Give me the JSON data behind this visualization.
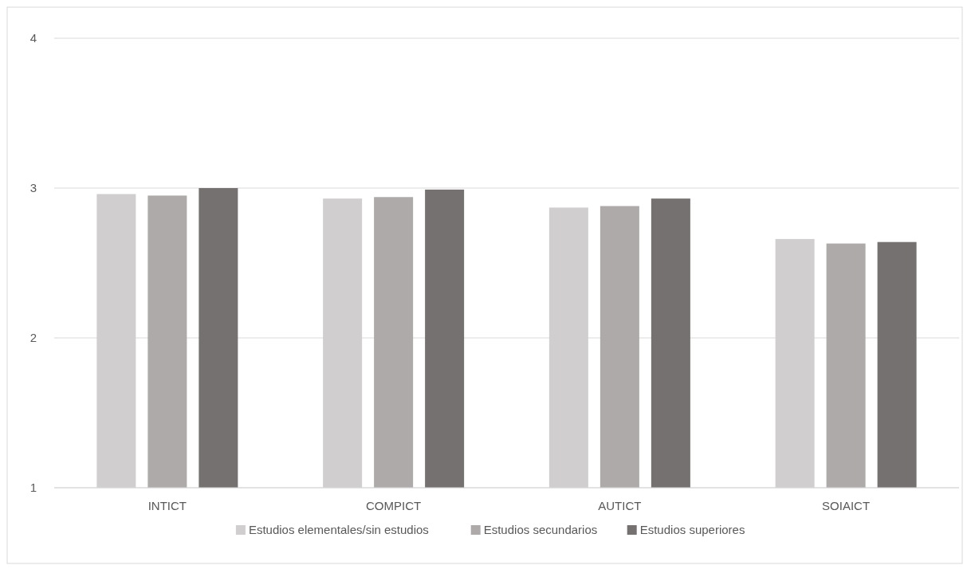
{
  "chart_data": {
    "type": "bar",
    "categories": [
      "INTICT",
      "COMPICT",
      "AUTICT",
      "SOIAICT"
    ],
    "series": [
      {
        "name": "Estudios elementales/sin estudios",
        "color": "#d0cece",
        "values": [
          2.96,
          2.93,
          2.87,
          2.66
        ]
      },
      {
        "name": "Estudios secundarios",
        "color": "#aeaaaa",
        "values": [
          2.95,
          2.94,
          2.88,
          2.63
        ]
      },
      {
        "name": "Estudios superiores",
        "color": "#767171",
        "values": [
          3.0,
          2.99,
          2.93,
          2.64
        ]
      }
    ],
    "ylim": [
      1,
      4
    ],
    "yticks": [
      1,
      2,
      3,
      4
    ],
    "grid": "y",
    "legend": "bottom"
  }
}
